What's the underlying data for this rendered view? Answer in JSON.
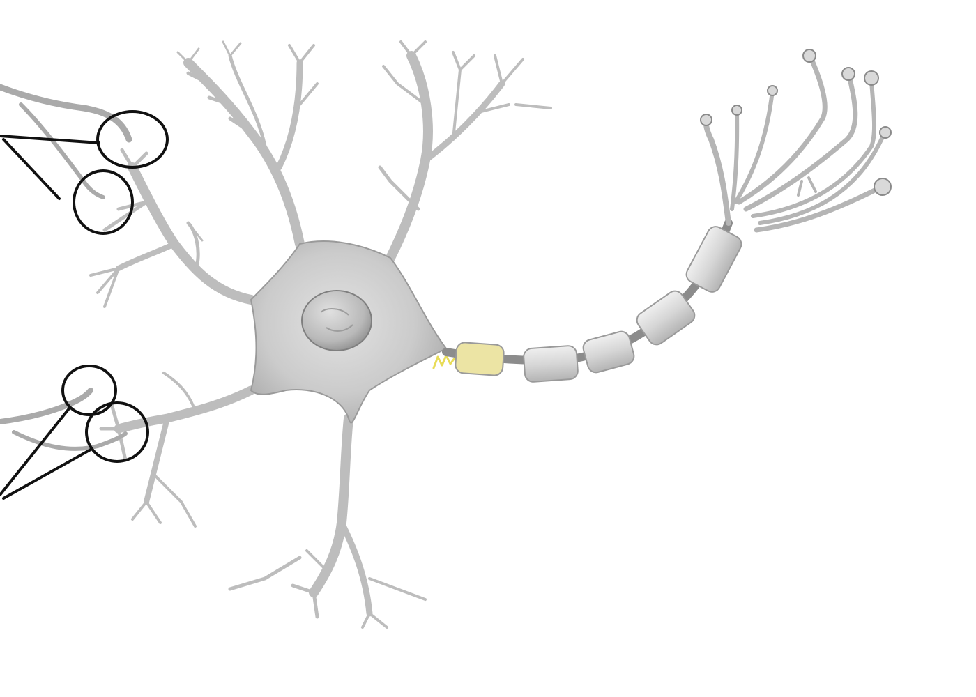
{
  "diagram": {
    "labels": [],
    "colors": {
      "background": "#ffffff",
      "cell_fill": "#cfcfcf",
      "cell_shade": "#a9a9a9",
      "cell_highlight": "#e6e6e6",
      "outline": "#8a8a8a",
      "nucleus": "#bdbdbd",
      "myelin": "#dcdcdc",
      "axon_hillock_highlight": "#f0e66a",
      "callout_ink": "#111111"
    },
    "parts": [
      "dendrites",
      "cell-body",
      "nucleus",
      "axon-hillock",
      "myelin-sheath",
      "nodes-of-ranvier",
      "axon-terminals",
      "incoming-axon-terminals",
      "synapse-callout-circles"
    ]
  }
}
